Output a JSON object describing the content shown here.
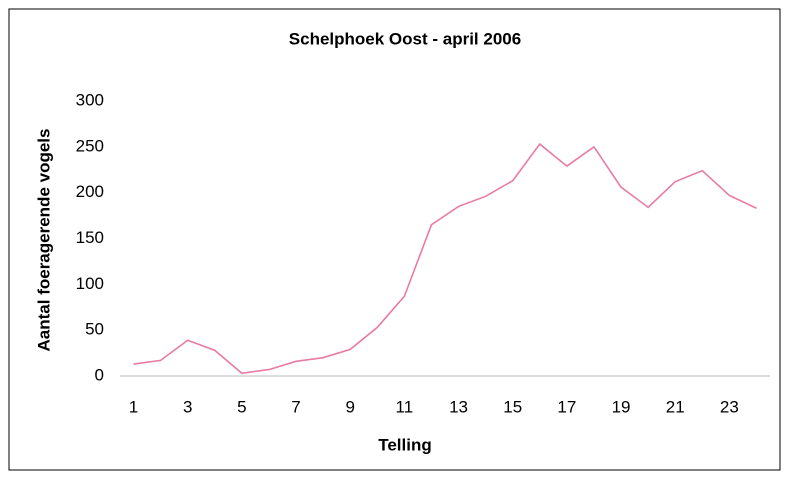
{
  "chart_data": {
    "type": "line",
    "title": "Schelphoek Oost - april 2006",
    "x_label": "Telling",
    "y_label": "Aantal foeragerende vogels",
    "categories": [
      1,
      null,
      3,
      null,
      5,
      null,
      7,
      null,
      9,
      null,
      11,
      null,
      13,
      null,
      15,
      null,
      17,
      null,
      19,
      null,
      21,
      null,
      23,
      null
    ],
    "series": [
      {
        "name": "Schelphoek Oost",
        "color": "#e87aa6",
        "values": [
          13,
          17,
          39,
          28,
          3,
          7,
          16,
          20,
          29,
          53,
          87,
          165,
          185,
          196,
          213,
          253,
          229,
          250,
          206,
          184,
          212,
          224,
          197,
          183
        ]
      }
    ],
    "ylim": [
      0,
      300
    ],
    "yticks": [
      0,
      50,
      100,
      150,
      200,
      250,
      300
    ],
    "grid": false,
    "legend": false
  }
}
